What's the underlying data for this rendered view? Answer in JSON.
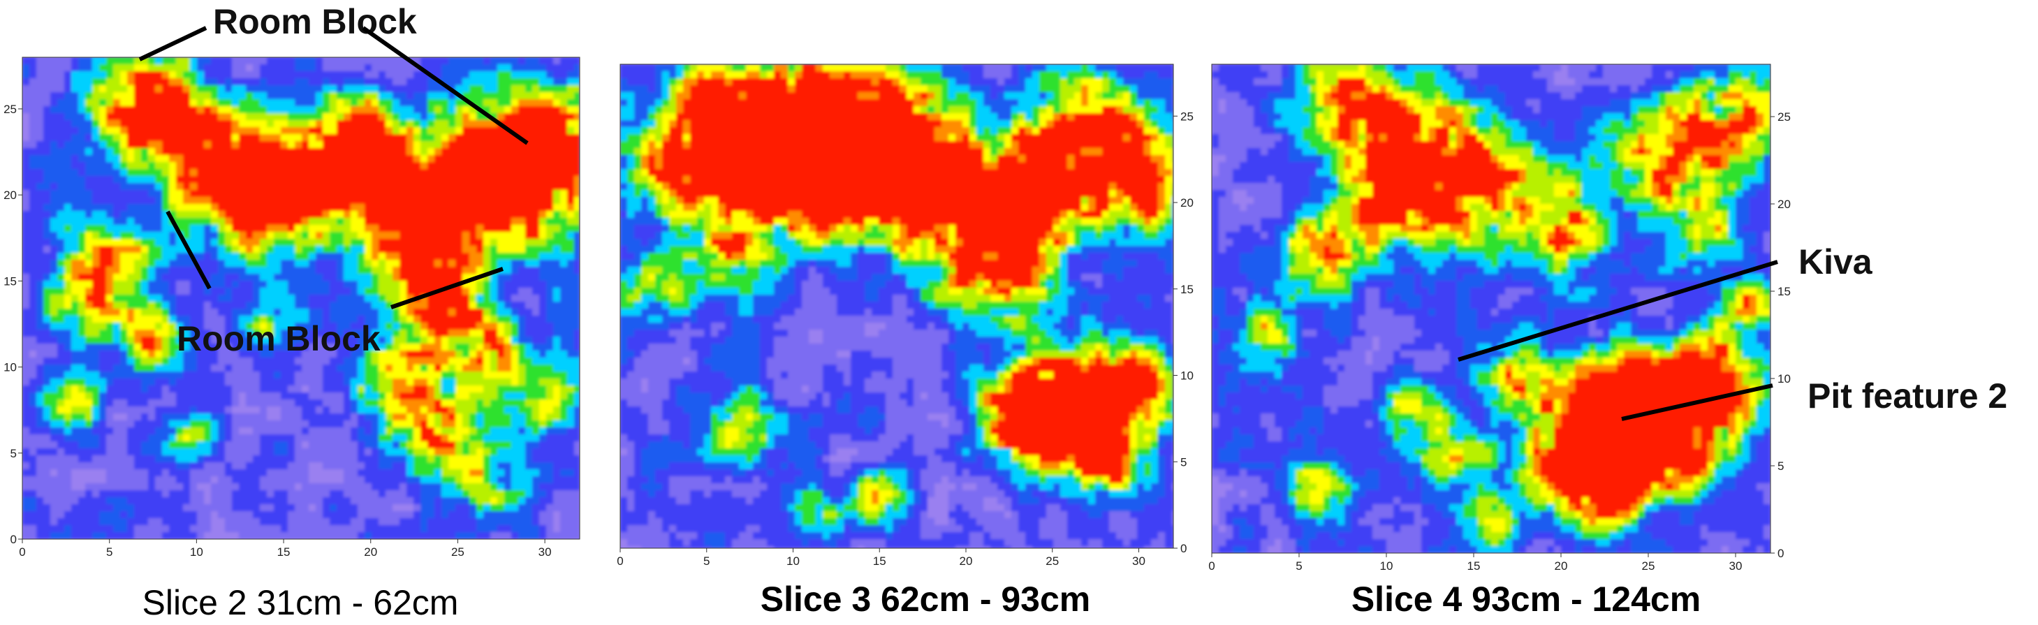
{
  "chart_data": [
    {
      "type": "heatmap",
      "title": "",
      "caption": "Slice 2  31cm - 62cm",
      "caption_bold": false,
      "x_ticks": [
        "0",
        "5",
        "10",
        "15",
        "20",
        "25",
        "30"
      ],
      "y_ticks": [
        "0",
        "5",
        "10",
        "15",
        "20",
        "25"
      ],
      "xlim": [
        0,
        32
      ],
      "ylim": [
        0,
        28
      ],
      "y_axis_side": "left",
      "colorscale": [
        "#9a80f0",
        "#7b6cf2",
        "#3f3ff5",
        "#1f5cf0",
        "#00d0ff",
        "#2ee12e",
        "#b8f000",
        "#ffff00",
        "#ff8c00",
        "#ff1a00"
      ],
      "hotspots": [
        {
          "x": 7,
          "y": 25,
          "r": 2.2,
          "v": 1.0
        },
        {
          "x": 11,
          "y": 22,
          "r": 2.0,
          "v": 0.8
        },
        {
          "x": 14,
          "y": 20,
          "r": 2.6,
          "v": 0.85
        },
        {
          "x": 18,
          "y": 21,
          "r": 2.2,
          "v": 0.75
        },
        {
          "x": 22,
          "y": 20,
          "r": 2.4,
          "v": 0.8
        },
        {
          "x": 26,
          "y": 22,
          "r": 2.2,
          "v": 0.75
        },
        {
          "x": 29,
          "y": 20.5,
          "r": 2.6,
          "v": 1.0
        },
        {
          "x": 30,
          "y": 24,
          "r": 2.0,
          "v": 0.7
        },
        {
          "x": 19,
          "y": 24,
          "r": 1.6,
          "v": 0.6
        },
        {
          "x": 23,
          "y": 18,
          "r": 1.8,
          "v": 0.7
        },
        {
          "x": 24,
          "y": 14,
          "r": 1.8,
          "v": 0.85
        },
        {
          "x": 5,
          "y": 16,
          "r": 1.8,
          "v": 0.65
        },
        {
          "x": 7,
          "y": 12,
          "r": 1.6,
          "v": 0.6
        },
        {
          "x": 3,
          "y": 14,
          "r": 1.4,
          "v": 0.55
        },
        {
          "x": 14,
          "y": 12,
          "r": 1.2,
          "v": 0.5
        },
        {
          "x": 22,
          "y": 9,
          "r": 2.2,
          "v": 0.6
        },
        {
          "x": 24,
          "y": 6,
          "r": 1.8,
          "v": 0.6
        },
        {
          "x": 27,
          "y": 11,
          "r": 1.6,
          "v": 0.55
        },
        {
          "x": 27,
          "y": 3,
          "r": 1.4,
          "v": 0.5
        },
        {
          "x": 30,
          "y": 8,
          "r": 1.6,
          "v": 0.55
        },
        {
          "x": 10,
          "y": 6,
          "r": 1.2,
          "v": 0.45
        },
        {
          "x": 3,
          "y": 8,
          "r": 1.2,
          "v": 0.45
        }
      ]
    },
    {
      "type": "heatmap",
      "title": "",
      "caption": "Slice 3  62cm - 93cm",
      "caption_bold": true,
      "x_ticks": [
        "0",
        "5",
        "10",
        "15",
        "20",
        "25",
        "30"
      ],
      "y_ticks": [
        "0",
        "5",
        "10",
        "15",
        "20",
        "25"
      ],
      "xlim": [
        0,
        32
      ],
      "ylim": [
        0,
        28
      ],
      "y_axis_side": "right",
      "colorscale": [
        "#9a80f0",
        "#7b6cf2",
        "#3f3ff5",
        "#1f5cf0",
        "#00d0ff",
        "#2ee12e",
        "#b8f000",
        "#ffff00",
        "#ff8c00",
        "#ff1a00"
      ],
      "hotspots": [
        {
          "x": 6,
          "y": 25,
          "r": 2.4,
          "v": 0.85
        },
        {
          "x": 10,
          "y": 25,
          "r": 2.2,
          "v": 0.8
        },
        {
          "x": 14,
          "y": 26,
          "r": 2.2,
          "v": 0.75
        },
        {
          "x": 17,
          "y": 24,
          "r": 2.0,
          "v": 0.7
        },
        {
          "x": 3,
          "y": 22,
          "r": 2.0,
          "v": 0.7
        },
        {
          "x": 8,
          "y": 21,
          "r": 2.4,
          "v": 0.8
        },
        {
          "x": 12,
          "y": 21,
          "r": 2.2,
          "v": 0.8
        },
        {
          "x": 16,
          "y": 21,
          "r": 2.0,
          "v": 0.7
        },
        {
          "x": 20,
          "y": 19,
          "r": 2.8,
          "v": 1.0
        },
        {
          "x": 24,
          "y": 21,
          "r": 2.2,
          "v": 0.75
        },
        {
          "x": 27,
          "y": 24,
          "r": 2.4,
          "v": 0.8
        },
        {
          "x": 30,
          "y": 21,
          "r": 2.2,
          "v": 0.8
        },
        {
          "x": 23,
          "y": 16,
          "r": 1.8,
          "v": 0.6
        },
        {
          "x": 6,
          "y": 17,
          "r": 1.6,
          "v": 0.55
        },
        {
          "x": 2,
          "y": 15,
          "r": 1.4,
          "v": 0.5
        },
        {
          "x": 25,
          "y": 8.5,
          "r": 2.2,
          "v": 0.95
        },
        {
          "x": 28,
          "y": 8,
          "r": 2.0,
          "v": 0.85
        },
        {
          "x": 23,
          "y": 7,
          "r": 1.6,
          "v": 0.65
        },
        {
          "x": 28,
          "y": 5,
          "r": 1.6,
          "v": 0.6
        },
        {
          "x": 30,
          "y": 10,
          "r": 1.4,
          "v": 0.55
        },
        {
          "x": 7,
          "y": 7,
          "r": 1.4,
          "v": 0.55
        },
        {
          "x": 15,
          "y": 3,
          "r": 1.2,
          "v": 0.45
        },
        {
          "x": 11,
          "y": 2,
          "r": 1.2,
          "v": 0.45
        }
      ]
    },
    {
      "type": "heatmap",
      "title": "",
      "caption": "Slice 4  93cm - 124cm",
      "caption_bold": true,
      "x_ticks": [
        "0",
        "5",
        "10",
        "15",
        "20",
        "25",
        "30"
      ],
      "y_ticks": [
        "0",
        "5",
        "10",
        "15",
        "20",
        "25"
      ],
      "xlim": [
        0,
        32
      ],
      "ylim": [
        0,
        28
      ],
      "y_axis_side": "right",
      "colorscale": [
        "#9a80f0",
        "#7b6cf2",
        "#3f3ff5",
        "#1f5cf0",
        "#00d0ff",
        "#2ee12e",
        "#b8f000",
        "#ffff00",
        "#ff8c00",
        "#ff1a00"
      ],
      "hotspots": [
        {
          "x": 8,
          "y": 26,
          "r": 2.2,
          "v": 0.75
        },
        {
          "x": 12,
          "y": 23,
          "r": 2.4,
          "v": 0.85
        },
        {
          "x": 15,
          "y": 21,
          "r": 2.0,
          "v": 0.75
        },
        {
          "x": 10,
          "y": 20,
          "r": 2.0,
          "v": 0.7
        },
        {
          "x": 20,
          "y": 19,
          "r": 2.2,
          "v": 0.75
        },
        {
          "x": 26,
          "y": 23,
          "r": 2.0,
          "v": 0.7
        },
        {
          "x": 30,
          "y": 25,
          "r": 2.2,
          "v": 0.7
        },
        {
          "x": 28,
          "y": 19,
          "r": 1.8,
          "v": 0.6
        },
        {
          "x": 6,
          "y": 17,
          "r": 1.6,
          "v": 0.65
        },
        {
          "x": 3,
          "y": 13,
          "r": 1.4,
          "v": 0.5
        },
        {
          "x": 11,
          "y": 8,
          "r": 1.4,
          "v": 0.5
        },
        {
          "x": 14,
          "y": 6,
          "r": 1.4,
          "v": 0.5
        },
        {
          "x": 17,
          "y": 10,
          "r": 1.4,
          "v": 0.5
        },
        {
          "x": 22,
          "y": 7,
          "r": 2.6,
          "v": 1.0
        },
        {
          "x": 25,
          "y": 8.5,
          "r": 2.2,
          "v": 0.9
        },
        {
          "x": 22,
          "y": 4.5,
          "r": 2.0,
          "v": 0.85
        },
        {
          "x": 27,
          "y": 6,
          "r": 1.8,
          "v": 0.7
        },
        {
          "x": 28,
          "y": 11.5,
          "r": 1.2,
          "v": 0.6
        },
        {
          "x": 30,
          "y": 9,
          "r": 1.6,
          "v": 0.6
        },
        {
          "x": 6,
          "y": 4,
          "r": 1.4,
          "v": 0.5
        },
        {
          "x": 16,
          "y": 2,
          "r": 1.2,
          "v": 0.45
        },
        {
          "x": 31,
          "y": 14,
          "r": 1.4,
          "v": 0.55
        }
      ]
    }
  ],
  "annotations": {
    "room_block_top": "Room Block",
    "room_block_mid": "Room Block",
    "kiva": "Kiva",
    "pit_feature": "Pit feature 2"
  }
}
